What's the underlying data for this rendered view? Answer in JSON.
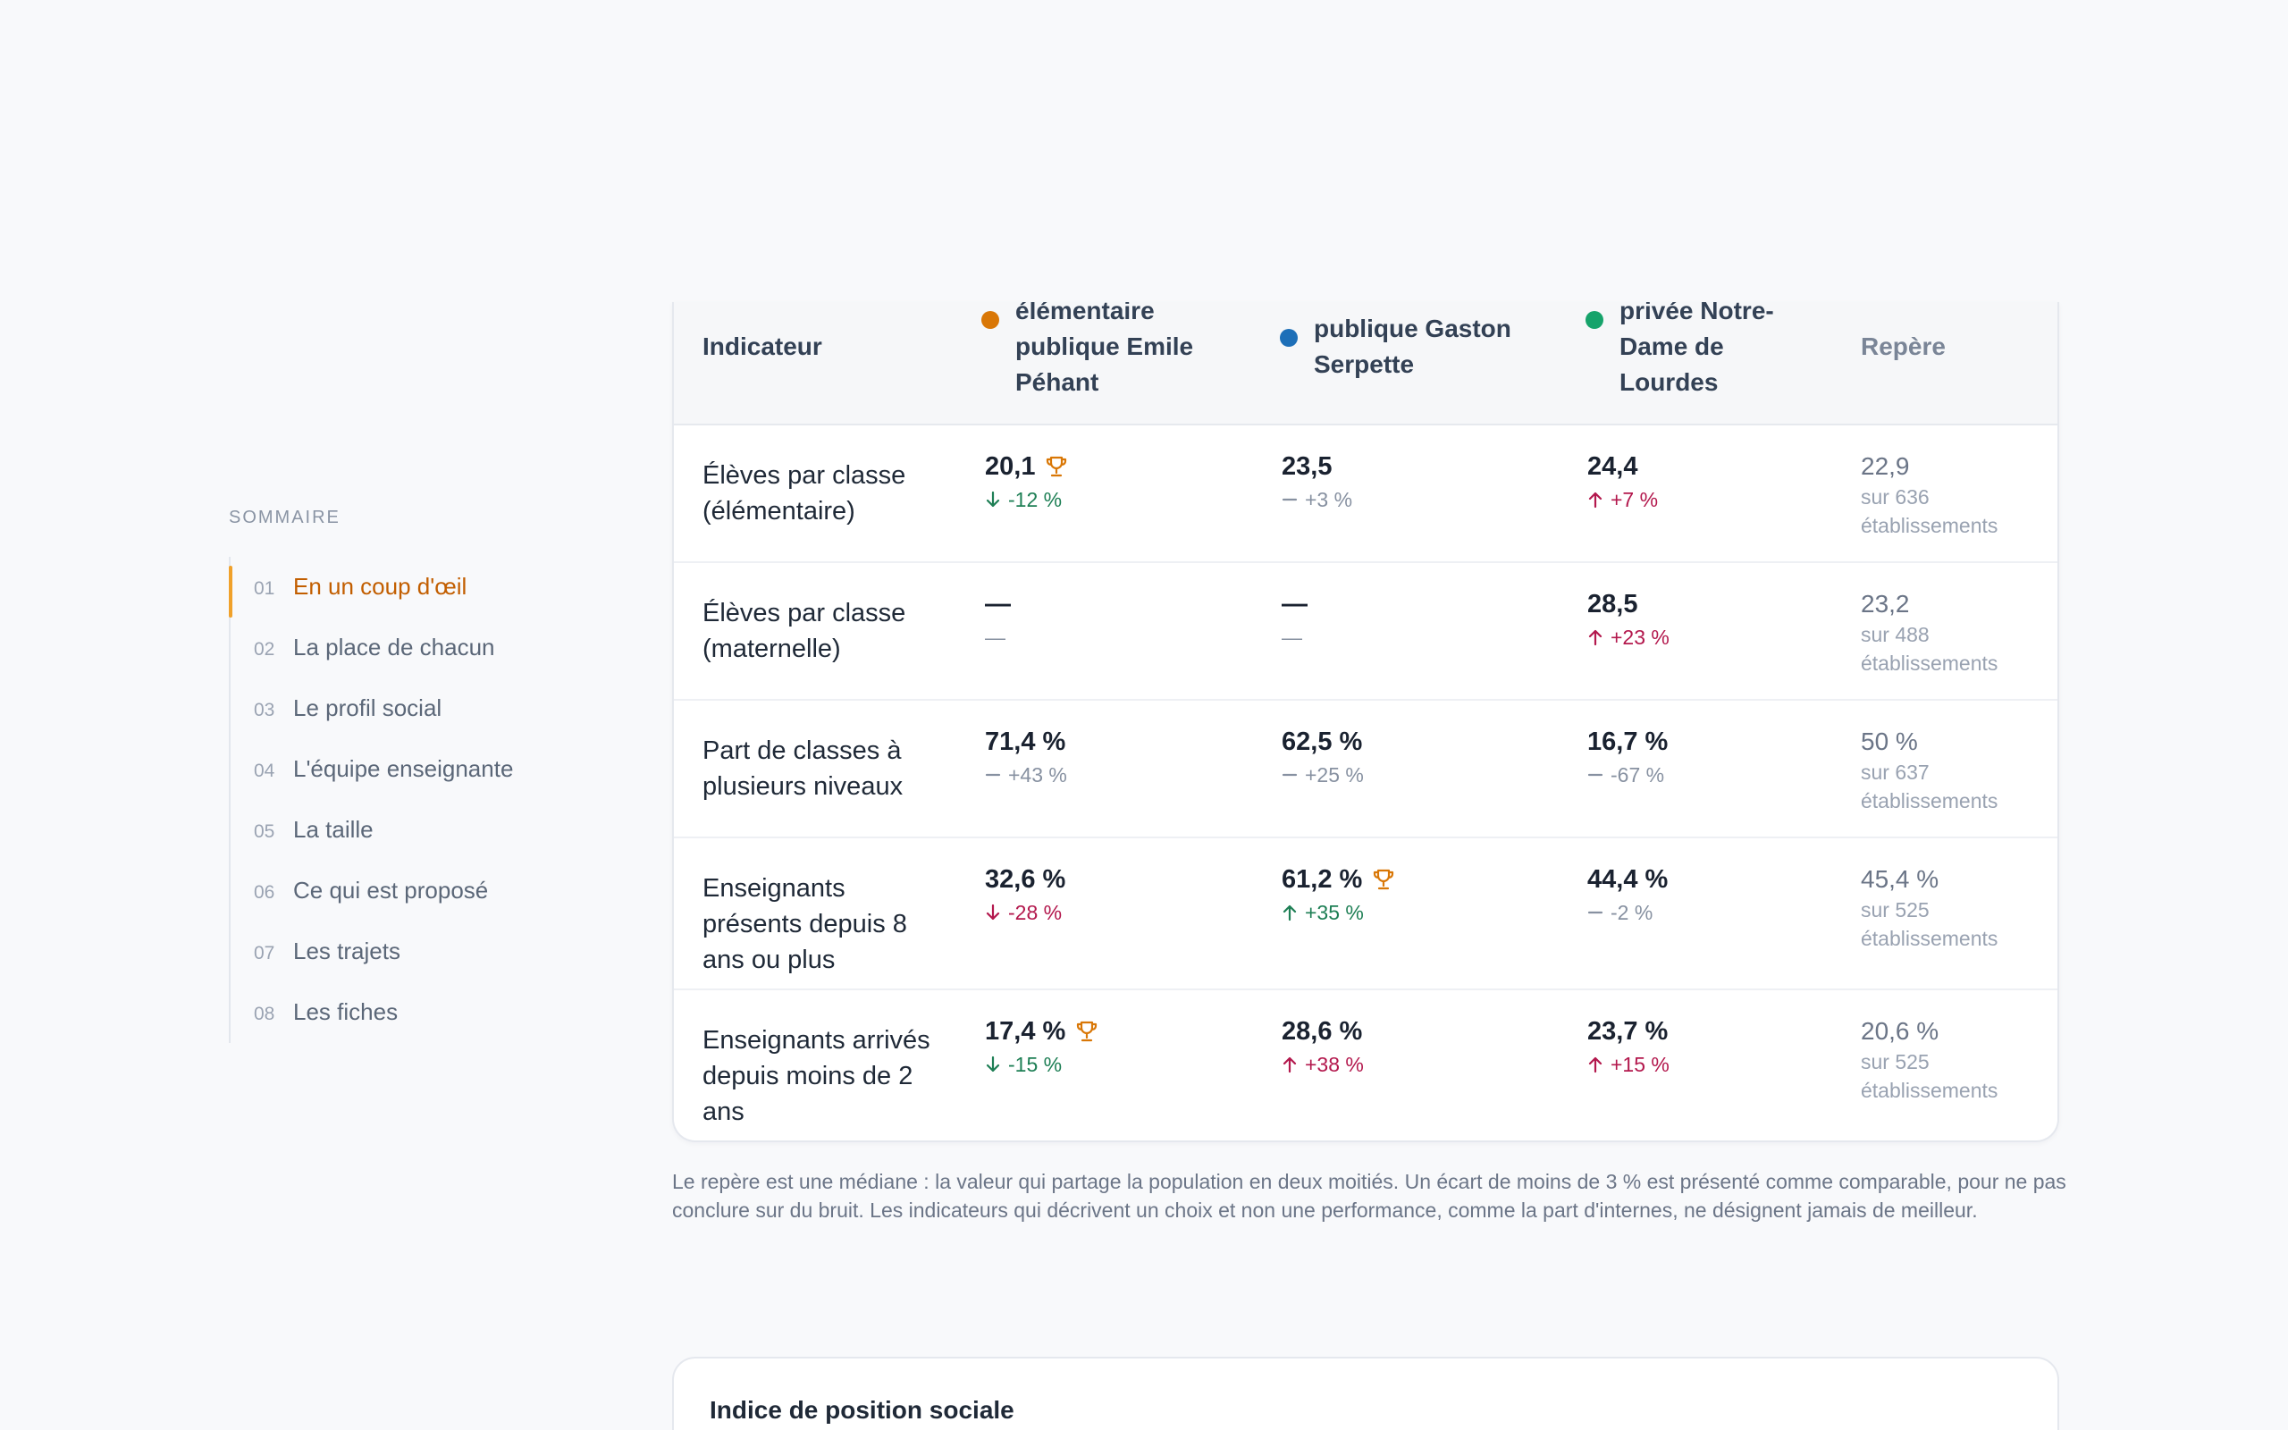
{
  "sidebar": {
    "title": "SOMMAIRE",
    "items": [
      {
        "num": "01",
        "label": "En un coup d'œil"
      },
      {
        "num": "02",
        "label": "La place de chacun"
      },
      {
        "num": "03",
        "label": "Le profil social"
      },
      {
        "num": "04",
        "label": "L'équipe enseignante"
      },
      {
        "num": "05",
        "label": "La taille"
      },
      {
        "num": "06",
        "label": "Ce qui est proposé"
      },
      {
        "num": "07",
        "label": "Les trajets"
      },
      {
        "num": "08",
        "label": "Les fiches"
      }
    ]
  },
  "table": {
    "headers": {
      "indicator": "Indicateur",
      "school_a": "élémentaire publique Emile Péhant",
      "school_b": "publique Gaston Serpette",
      "school_c": "privée Notre-Dame de Lourdes",
      "repere": "Repère"
    },
    "colors": {
      "school_a": "#d97706",
      "school_b": "#1d6fb8",
      "school_c": "#16a36b",
      "trophy": "#d97706"
    },
    "rows": [
      {
        "label": "Élèves par classe (élémentaire)",
        "a": {
          "value": "20,1",
          "delta": "-12 %",
          "trend": "down",
          "trophy": true
        },
        "b": {
          "value": "23,5",
          "delta": "+3 %",
          "trend": "neutral"
        },
        "c": {
          "value": "24,4",
          "delta": "+7 %",
          "trend": "up"
        },
        "repere": {
          "value": "22,9",
          "sub": "sur 636 établissements"
        }
      },
      {
        "label": "Élèves par classe (maternelle)",
        "a": {
          "value": "—",
          "delta": "—",
          "trend": "none"
        },
        "b": {
          "value": "—",
          "delta": "—",
          "trend": "none"
        },
        "c": {
          "value": "28,5",
          "delta": "+23 %",
          "trend": "up"
        },
        "repere": {
          "value": "23,2",
          "sub": "sur 488 établissements"
        }
      },
      {
        "label": "Part de classes à plusieurs niveaux",
        "a": {
          "value": "71,4 %",
          "delta": "+43 %",
          "trend": "neutral"
        },
        "b": {
          "value": "62,5 %",
          "delta": "+25 %",
          "trend": "neutral"
        },
        "c": {
          "value": "16,7 %",
          "delta": "-67 %",
          "trend": "neutral"
        },
        "repere": {
          "value": "50 %",
          "sub": "sur 637 établissements"
        }
      },
      {
        "label": "Enseignants présents depuis 8 ans ou plus",
        "a": {
          "value": "32,6 %",
          "delta": "-28 %",
          "trend": "bad-down"
        },
        "b": {
          "value": "61,2 %",
          "delta": "+35 %",
          "trend": "good-up",
          "trophy": true
        },
        "c": {
          "value": "44,4 %",
          "delta": "-2 %",
          "trend": "neutral"
        },
        "repere": {
          "value": "45,4 %",
          "sub": "sur 525 établissements"
        }
      },
      {
        "label": "Enseignants arrivés depuis moins de 2 ans",
        "a": {
          "value": "17,4 %",
          "delta": "-15 %",
          "trend": "down",
          "trophy": true
        },
        "b": {
          "value": "28,6 %",
          "delta": "+38 %",
          "trend": "up"
        },
        "c": {
          "value": "23,7 %",
          "delta": "+15 %",
          "trend": "up"
        },
        "repere": {
          "value": "20,6 %",
          "sub": "sur 525 établissements"
        }
      }
    ]
  },
  "footnote": "Le repère est une médiane : la valeur qui partage la population en deux moitiés. Un écart de moins de 3 % est présenté comme comparable, pour ne pas conclure sur du bruit. Les indicateurs qui décrivent un choix et non une performance, comme la part d'internes, ne désignent jamais de meilleur.",
  "next_card": {
    "title": "Indice de position sociale"
  }
}
